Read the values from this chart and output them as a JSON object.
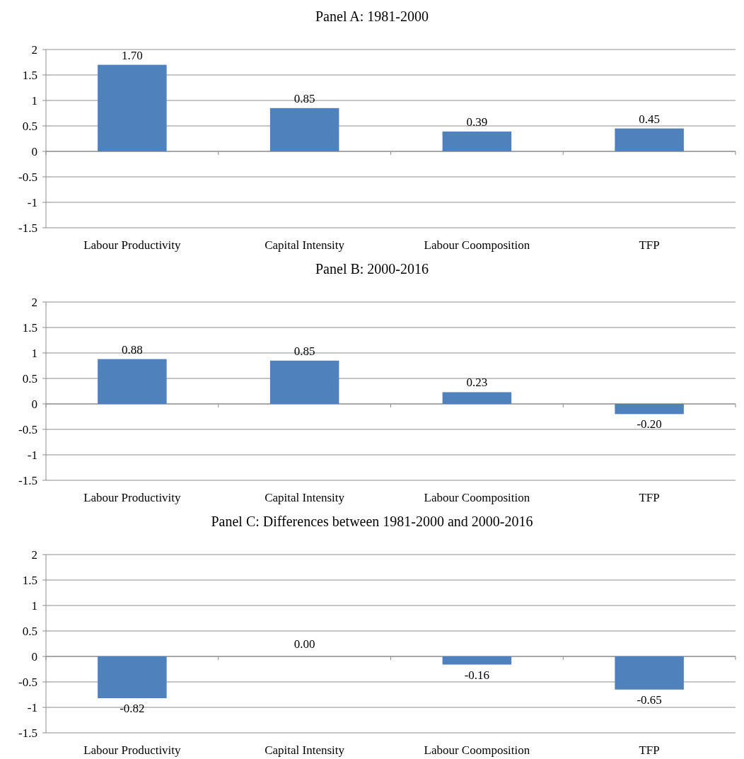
{
  "chart_data": [
    {
      "type": "bar",
      "title": "Panel A: 1981-2000",
      "categories": [
        "Labour Productivity",
        "Capital Intensity",
        "Labour Coomposition",
        "TFP"
      ],
      "values": [
        1.7,
        0.85,
        0.39,
        0.45
      ],
      "value_labels": [
        "1.70",
        "0.85",
        "0.39",
        "0.45"
      ],
      "color": "#4f81bd",
      "ylim": [
        -1.5,
        2
      ],
      "yticks": [
        -1.5,
        -1,
        -0.5,
        0,
        0.5,
        1,
        1.5,
        2
      ],
      "grid": "y"
    },
    {
      "type": "bar",
      "title": "Panel B: 2000-2016",
      "categories": [
        "Labour Productivity",
        "Capital Intensity",
        "Labour Coomposition",
        "TFP"
      ],
      "values": [
        0.88,
        0.85,
        0.23,
        -0.2
      ],
      "value_labels": [
        "0.88",
        "0.85",
        "0.23",
        "-0.20"
      ],
      "color": "#4f81bd",
      "ylim": [
        -1.5,
        2
      ],
      "yticks": [
        -1.5,
        -1,
        -0.5,
        0,
        0.5,
        1,
        1.5,
        2
      ],
      "grid": "y"
    },
    {
      "type": "bar",
      "title": "Panel C: Differences between 1981-2000 and 2000-2016",
      "categories": [
        "Labour Productivity",
        "Capital Intensity",
        "Labour Coomposition",
        "TFP"
      ],
      "values": [
        -0.82,
        0.0,
        -0.16,
        -0.65
      ],
      "value_labels": [
        "-0.82",
        "0.00",
        "-0.16",
        "-0.65"
      ],
      "color": "#4f81bd",
      "ylim": [
        -1.5,
        2
      ],
      "yticks": [
        -1.5,
        -1,
        -0.5,
        0,
        0.5,
        1,
        1.5,
        2
      ],
      "grid": "y"
    }
  ]
}
